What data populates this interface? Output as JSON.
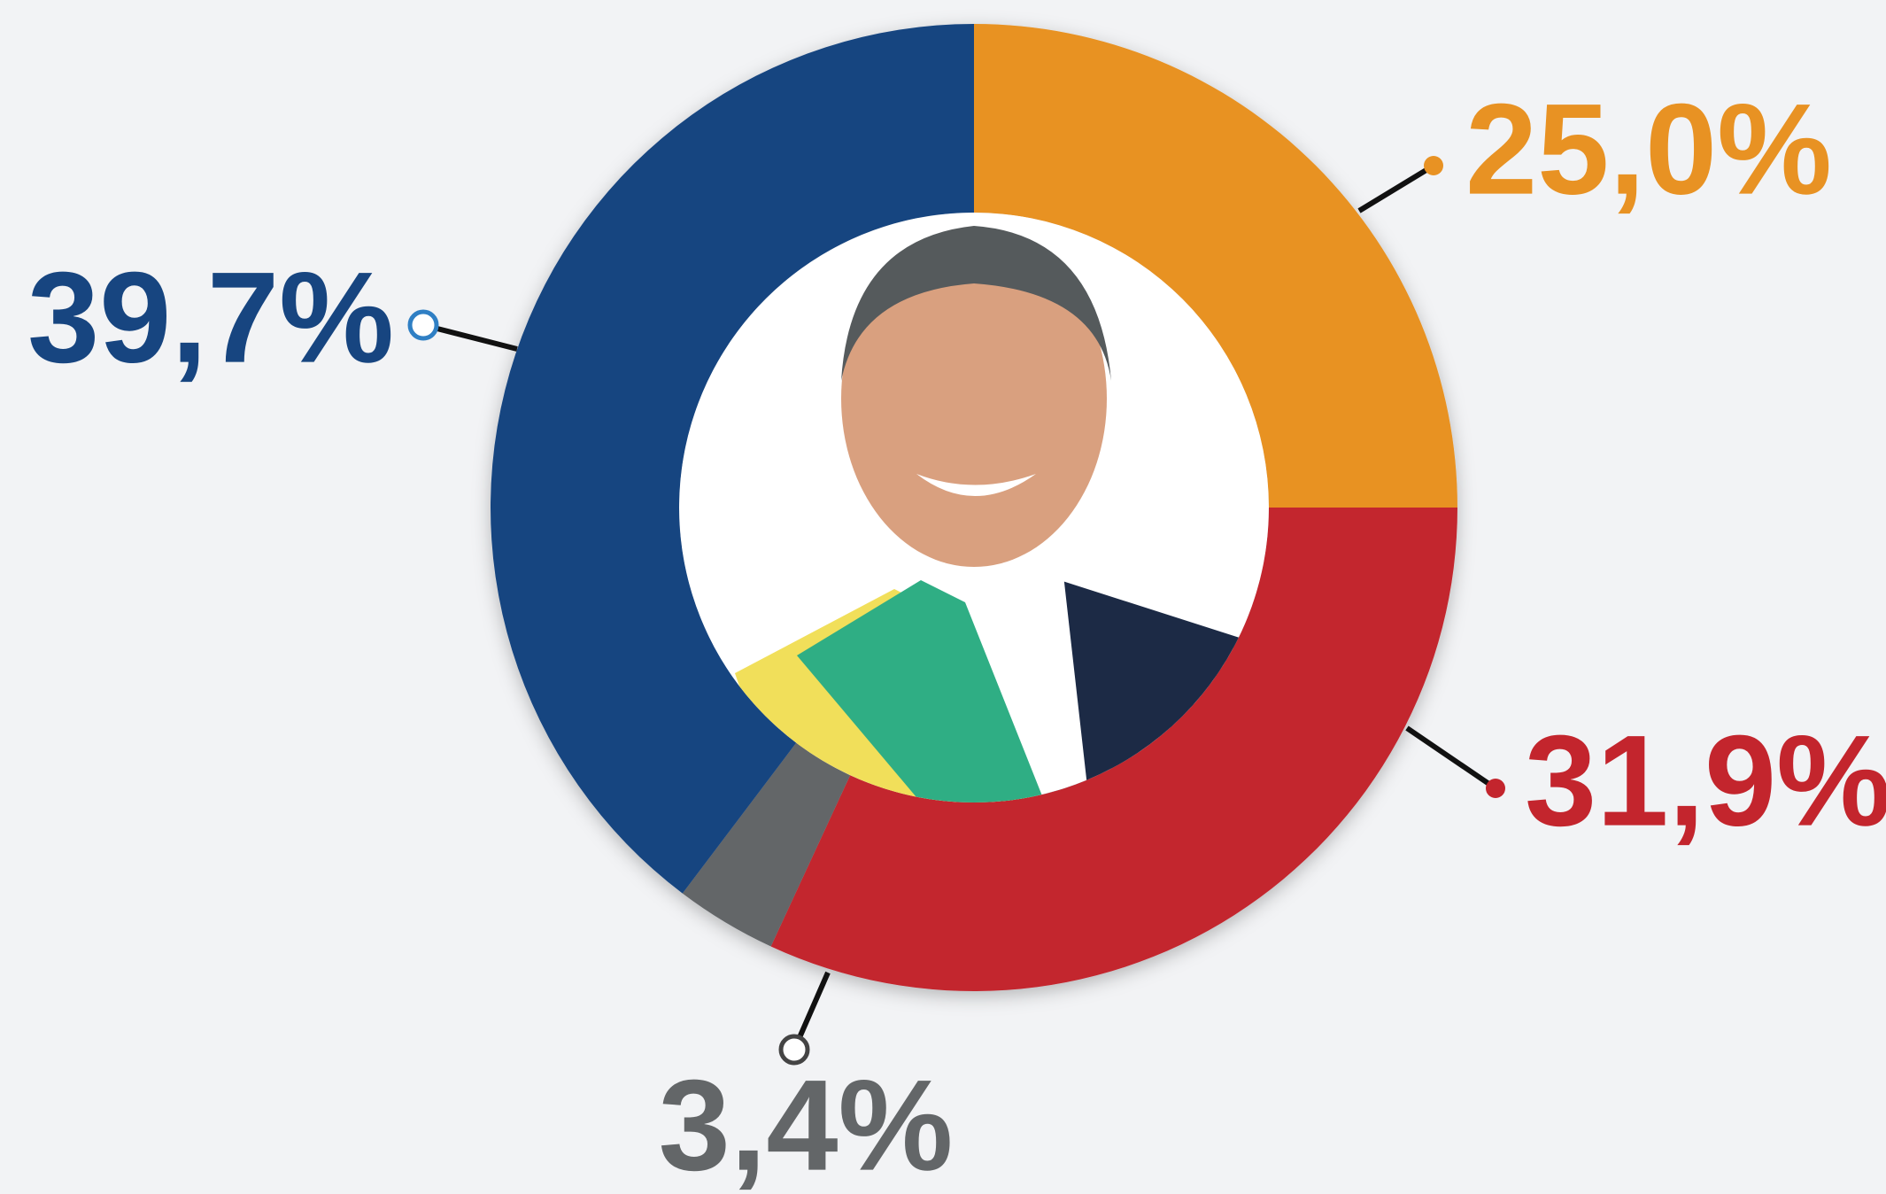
{
  "chart_data": {
    "type": "donut",
    "categories": [
      null,
      null,
      null,
      null
    ],
    "values": [
      25.0,
      31.9,
      3.4,
      39.7
    ],
    "value_labels": [
      "25,0%",
      "31,9%",
      "3,4%",
      "39,7%"
    ],
    "colors": [
      "#e89223",
      "#c3252d",
      "#636668",
      "#174580"
    ]
  }
}
